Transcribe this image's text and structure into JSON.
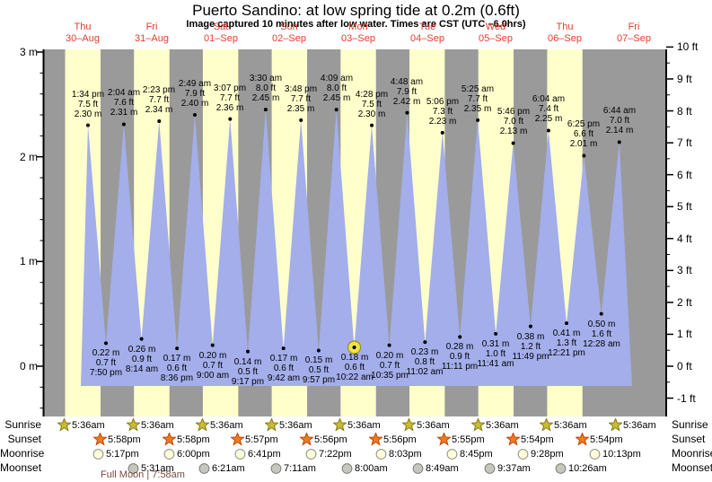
{
  "header": {
    "title": "Puerto Sandino: at low  spring tide at 0.2m (0.6ft)",
    "subtitle": "Image captured 10 minutes after low water. Times are CST (UTC –6.0hrs)"
  },
  "colors": {
    "night_band": "#9a9a9a",
    "day_band": "#ffffcc",
    "tide_fill": "#a3aeea",
    "day_label_red": "#e83a30",
    "axis": "#000000",
    "point_dot": "#000000",
    "highlight_fill": "#f0e243",
    "highlight_stroke": "#9c8f1e",
    "sunrise_fill": "#c9bb35",
    "sunrise_stroke": "#877c15",
    "sunset_fill": "#ea7d1f",
    "sunset_stroke": "#c1470e",
    "moonrise_fill": "#ffffd9",
    "moonrise_stroke": "#8c8c8c",
    "moonset_fill": "#c6c6bd",
    "moonset_stroke": "#7d7d7d",
    "moon_note_color": "#774a3f"
  },
  "chart_data": {
    "type": "area",
    "title": "Puerto Sandino tide heights, Thu 30-Aug to Fri 07-Sep",
    "ylabel_left": "meters",
    "ylabel_right": "feet",
    "ylim_m": [
      -0.48,
      3.03
    ],
    "ylim_ft": [
      -1,
      10
    ],
    "grid": false,
    "days": [
      {
        "weekday": "Thu",
        "date": "30–Aug"
      },
      {
        "weekday": "Fri",
        "date": "31–Aug"
      },
      {
        "weekday": "Sat",
        "date": "01–Sep"
      },
      {
        "weekday": "Sun",
        "date": "02–Sep"
      },
      {
        "weekday": "Mon",
        "date": "03–Sep"
      },
      {
        "weekday": "Tue",
        "date": "04–Sep"
      },
      {
        "weekday": "Wed",
        "date": "05–Sep"
      },
      {
        "weekday": "Thu",
        "date": "06–Sep"
      },
      {
        "weekday": "Fri",
        "date": "07–Sep"
      }
    ],
    "left_ticks": [
      {
        "m": 3,
        "label": "3 m"
      },
      {
        "m": 2,
        "label": "2 m"
      },
      {
        "m": 1,
        "label": "1 m"
      },
      {
        "m": 0,
        "label": "0 m"
      }
    ],
    "right_ticks": [
      {
        "ft": 10,
        "label": "10 ft"
      },
      {
        "ft": 9,
        "label": "9 ft"
      },
      {
        "ft": 8,
        "label": "8 ft"
      },
      {
        "ft": 7,
        "label": "7 ft"
      },
      {
        "ft": 6,
        "label": "6 ft"
      },
      {
        "ft": 5,
        "label": "5 ft"
      },
      {
        "ft": 4,
        "label": "4 ft"
      },
      {
        "ft": 3,
        "label": "3 ft"
      },
      {
        "ft": 2,
        "label": "2 ft"
      },
      {
        "ft": 1,
        "label": "1 ft"
      },
      {
        "ft": 0,
        "label": "0 ft"
      },
      {
        "ft": -1,
        "label": "-1 ft"
      }
    ],
    "tide_events": [
      {
        "day": 0,
        "type": "high",
        "time": "1:34 pm",
        "ft": 7.5,
        "m": 2.3
      },
      {
        "day": 0,
        "type": "low",
        "time": "7:50 pm",
        "ft": 0.7,
        "m": 0.22
      },
      {
        "day": 1,
        "type": "high",
        "time": "2:04 am",
        "ft": 7.6,
        "m": 2.31
      },
      {
        "day": 1,
        "type": "low",
        "time": "8:14 am",
        "ft": 0.9,
        "m": 0.26
      },
      {
        "day": 1,
        "type": "high",
        "time": "2:23 pm",
        "ft": 7.7,
        "m": 2.34
      },
      {
        "day": 1,
        "type": "low",
        "time": "8:36 pm",
        "ft": 0.6,
        "m": 0.17
      },
      {
        "day": 2,
        "type": "high",
        "time": "2:49 am",
        "ft": 7.9,
        "m": 2.4
      },
      {
        "day": 2,
        "type": "low",
        "time": "9:00 am",
        "ft": 0.7,
        "m": 0.2
      },
      {
        "day": 2,
        "type": "high",
        "time": "3:07 pm",
        "ft": 7.7,
        "m": 2.36
      },
      {
        "day": 2,
        "type": "low",
        "time": "9:17 pm",
        "ft": 0.5,
        "m": 0.14
      },
      {
        "day": 3,
        "type": "high",
        "time": "3:30 am",
        "ft": 8.0,
        "m": 2.45
      },
      {
        "day": 3,
        "type": "low",
        "time": "9:42 am",
        "ft": 0.6,
        "m": 0.17
      },
      {
        "day": 3,
        "type": "high",
        "time": "3:48 pm",
        "ft": 7.7,
        "m": 2.35
      },
      {
        "day": 3,
        "type": "low",
        "time": "9:57 pm",
        "ft": 0.5,
        "m": 0.15
      },
      {
        "day": 4,
        "type": "high",
        "time": "4:09 am",
        "ft": 8.0,
        "m": 2.45
      },
      {
        "day": 4,
        "type": "low",
        "time": "10:22 am",
        "ft": 0.6,
        "m": 0.18,
        "highlight": true
      },
      {
        "day": 4,
        "type": "high",
        "time": "4:28 pm",
        "ft": 7.5,
        "m": 2.3
      },
      {
        "day": 4,
        "type": "low",
        "time": "10:35 pm",
        "ft": 0.7,
        "m": 0.2
      },
      {
        "day": 5,
        "type": "high",
        "time": "4:48 am",
        "ft": 7.9,
        "m": 2.42
      },
      {
        "day": 5,
        "type": "low",
        "time": "11:02 am",
        "ft": 0.8,
        "m": 0.23
      },
      {
        "day": 5,
        "type": "high",
        "time": "5:06 pm",
        "ft": 7.3,
        "m": 2.23
      },
      {
        "day": 5,
        "type": "low",
        "time": "11:11 pm",
        "ft": 0.9,
        "m": 0.28
      },
      {
        "day": 6,
        "type": "high",
        "time": "5:25 am",
        "ft": 7.7,
        "m": 2.35
      },
      {
        "day": 6,
        "type": "low",
        "time": "11:41 am",
        "ft": 1.0,
        "m": 0.31
      },
      {
        "day": 6,
        "type": "high",
        "time": "5:46 pm",
        "ft": 7.0,
        "m": 2.13
      },
      {
        "day": 6,
        "type": "low",
        "time": "11:49 pm",
        "ft": 1.2,
        "m": 0.38
      },
      {
        "day": 7,
        "type": "high",
        "time": "6:04 am",
        "ft": 7.4,
        "m": 2.25
      },
      {
        "day": 7,
        "type": "low",
        "time": "12:21 pm",
        "ft": 1.3,
        "m": 0.41
      },
      {
        "day": 7,
        "type": "high",
        "time": "6:25 pm",
        "ft": 6.6,
        "m": 2.01
      },
      {
        "day": 8,
        "type": "low",
        "time": "12:28 am",
        "ft": 1.6,
        "m": 0.5
      },
      {
        "day": 8,
        "type": "high",
        "time": "6:44 am",
        "ft": 7.0,
        "m": 2.14
      }
    ],
    "astro": {
      "row_labels": [
        "Sunrise",
        "Sunset",
        "Moonrise",
        "Moonset"
      ],
      "sunrise": [
        {
          "day": 0,
          "time": "5:36am"
        },
        {
          "day": 1,
          "time": "5:36am"
        },
        {
          "day": 2,
          "time": "5:36am"
        },
        {
          "day": 3,
          "time": "5:36am"
        },
        {
          "day": 4,
          "time": "5:36am"
        },
        {
          "day": 5,
          "time": "5:36am"
        },
        {
          "day": 6,
          "time": "5:36am"
        },
        {
          "day": 7,
          "time": "5:36am"
        },
        {
          "day": 8,
          "time": "5:36am"
        }
      ],
      "sunset": [
        {
          "day": 0,
          "time": "5:58pm"
        },
        {
          "day": 1,
          "time": "5:58pm"
        },
        {
          "day": 2,
          "time": "5:57pm"
        },
        {
          "day": 3,
          "time": "5:56pm"
        },
        {
          "day": 4,
          "time": "5:56pm"
        },
        {
          "day": 5,
          "time": "5:55pm"
        },
        {
          "day": 6,
          "time": "5:54pm"
        },
        {
          "day": 7,
          "time": "5:54pm"
        }
      ],
      "moonrise": [
        {
          "day": 0,
          "time": "5:17pm"
        },
        {
          "day": 1,
          "time": "6:00pm"
        },
        {
          "day": 2,
          "time": "6:41pm"
        },
        {
          "day": 3,
          "time": "7:22pm"
        },
        {
          "day": 4,
          "time": "8:03pm"
        },
        {
          "day": 5,
          "time": "8:45pm"
        },
        {
          "day": 6,
          "time": "9:28pm"
        },
        {
          "day": 7,
          "time": "10:13pm"
        }
      ],
      "moonset": [
        {
          "day": 1,
          "time": "5:31am"
        },
        {
          "day": 2,
          "time": "6:21am"
        },
        {
          "day": 3,
          "time": "7:11am"
        },
        {
          "day": 4,
          "time": "8:00am"
        },
        {
          "day": 5,
          "time": "8:49am"
        },
        {
          "day": 6,
          "time": "9:37am"
        },
        {
          "day": 7,
          "time": "10:26am"
        }
      ]
    },
    "moon_phase_note": "Full Moon | 7:58am"
  }
}
